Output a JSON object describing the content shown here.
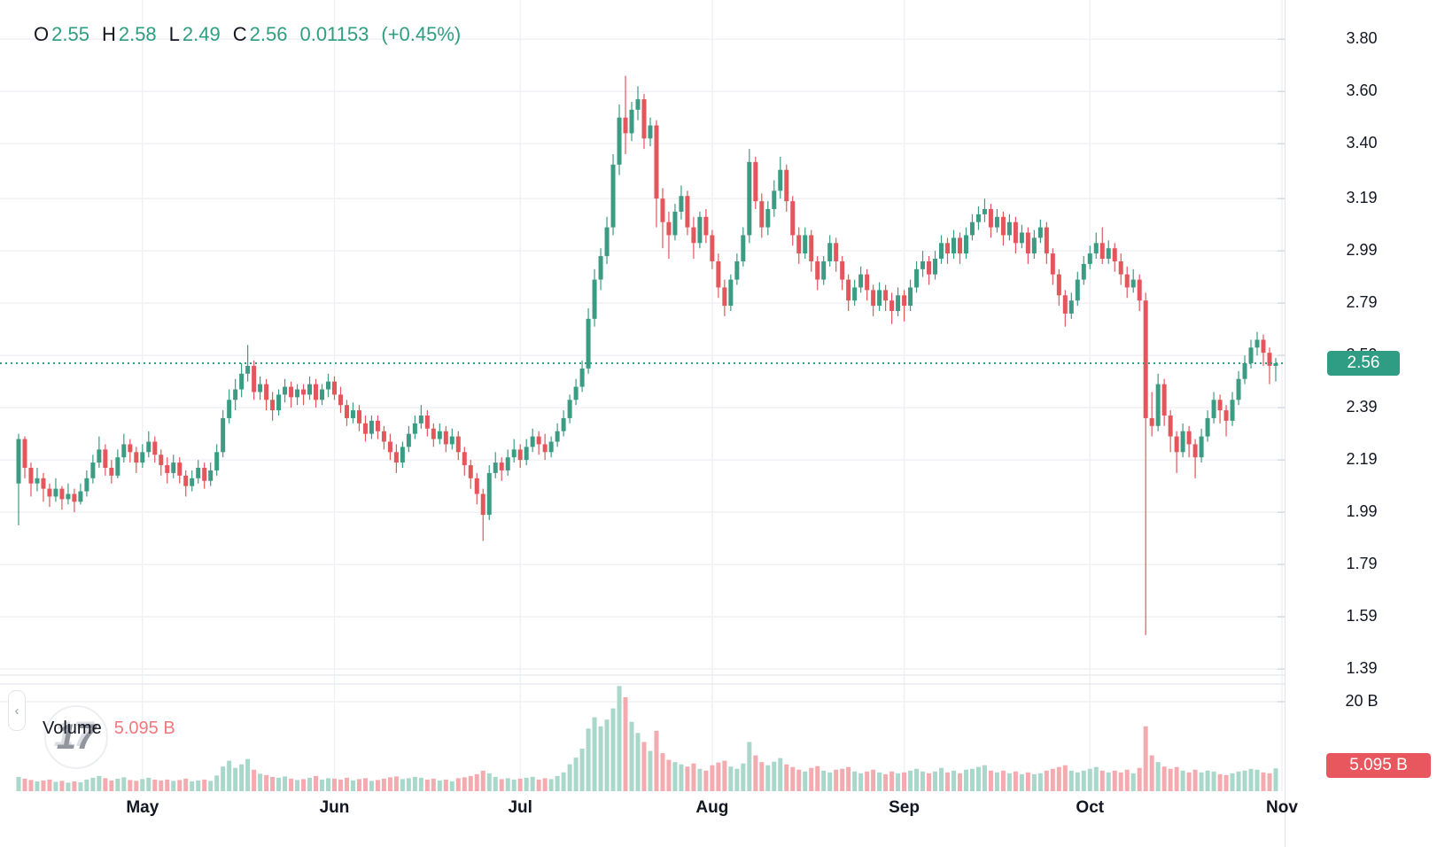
{
  "legend": {
    "items": [
      {
        "label": "O",
        "value": "2.55"
      },
      {
        "label": "H",
        "value": "2.58"
      },
      {
        "label": "L",
        "value": "2.49"
      },
      {
        "label": "C",
        "value": "2.56"
      }
    ],
    "change": "0.01153",
    "change_pct": "(+0.45%)"
  },
  "volume_row": {
    "label": "Volume",
    "value_display": "5.095 B"
  },
  "watermark_text": "17",
  "price_axis": {
    "ticks": [
      "3.80",
      "3.60",
      "3.40",
      "3.19",
      "2.99",
      "2.79",
      "2.59",
      "2.39",
      "2.19",
      "1.99",
      "1.79",
      "1.59",
      "1.39"
    ],
    "current_price_badge": "2.56",
    "volume_max_label": "20 B",
    "volume_badge": "5.095 B"
  },
  "time_axis": {
    "labels": [
      "May",
      "Jun",
      "Jul",
      "Aug",
      "Sep",
      "Oct",
      "Nov"
    ]
  },
  "colors": {
    "candle_up": "#3b9c83",
    "candle_down": "#e2565c",
    "vol_up": "#a9d7c9",
    "vol_down": "#f4abb0",
    "badge_up": "#2f9d83",
    "badge_down": "#e9575e",
    "legend_green": "#2f9d81",
    "vol_value_red": "#f0787e",
    "grid": "#f0f1f4",
    "axis_text": "#131722",
    "dotted_price_line": "#339d84"
  },
  "chart_data": {
    "type": "candlestick",
    "subtype": "price_with_volume_pane",
    "price_line": 2.56,
    "ohlc_current": {
      "open": 2.55,
      "high": 2.58,
      "low": 2.49,
      "close": 2.56,
      "change": 0.01153,
      "change_pct": 0.45
    },
    "volume_current_billions": 5.095,
    "volume_axis_max_billions": 20,
    "price_tick_values": [
      3.8,
      3.6,
      3.4,
      3.19,
      2.99,
      2.79,
      2.59,
      2.39,
      2.19,
      1.99,
      1.79,
      1.59,
      1.39
    ],
    "months": [
      {
        "label": "May",
        "index": 20
      },
      {
        "label": "Jun",
        "index": 51
      },
      {
        "label": "Jul",
        "index": 81
      },
      {
        "label": "Aug",
        "index": 112
      },
      {
        "label": "Sep",
        "index": 143
      },
      {
        "label": "Oct",
        "index": 173
      },
      {
        "label": "Nov",
        "index": 204
      }
    ],
    "candles_format": [
      "open",
      "high",
      "low",
      "close",
      "volume_billions"
    ],
    "candles": [
      [
        2.1,
        2.29,
        1.94,
        2.27,
        3.2
      ],
      [
        2.27,
        2.28,
        2.12,
        2.16,
        2.8
      ],
      [
        2.16,
        2.18,
        2.05,
        2.1,
        2.5
      ],
      [
        2.1,
        2.16,
        2.07,
        2.12,
        2.2
      ],
      [
        2.12,
        2.14,
        2.03,
        2.08,
        2.4
      ],
      [
        2.08,
        2.1,
        2.01,
        2.05,
        2.6
      ],
      [
        2.05,
        2.12,
        2.03,
        2.08,
        2.1
      ],
      [
        2.08,
        2.09,
        2.0,
        2.04,
        2.3
      ],
      [
        2.04,
        2.1,
        2.02,
        2.06,
        1.9
      ],
      [
        2.06,
        2.08,
        1.99,
        2.03,
        2.2
      ],
      [
        2.03,
        2.1,
        2.02,
        2.07,
        2.0
      ],
      [
        2.07,
        2.15,
        2.05,
        2.12,
        2.6
      ],
      [
        2.12,
        2.21,
        2.1,
        2.18,
        3.0
      ],
      [
        2.18,
        2.28,
        2.16,
        2.23,
        3.4
      ],
      [
        2.23,
        2.25,
        2.13,
        2.16,
        2.9
      ],
      [
        2.16,
        2.19,
        2.1,
        2.13,
        2.4
      ],
      [
        2.13,
        2.23,
        2.12,
        2.2,
        2.8
      ],
      [
        2.2,
        2.29,
        2.18,
        2.25,
        3.1
      ],
      [
        2.25,
        2.27,
        2.18,
        2.22,
        2.5
      ],
      [
        2.22,
        2.24,
        2.14,
        2.18,
        2.3
      ],
      [
        2.18,
        2.25,
        2.16,
        2.22,
        2.7
      ],
      [
        2.22,
        2.3,
        2.2,
        2.26,
        3.0
      ],
      [
        2.26,
        2.28,
        2.18,
        2.21,
        2.6
      ],
      [
        2.21,
        2.23,
        2.13,
        2.17,
        2.4
      ],
      [
        2.17,
        2.2,
        2.1,
        2.14,
        2.6
      ],
      [
        2.14,
        2.21,
        2.12,
        2.18,
        2.3
      ],
      [
        2.18,
        2.2,
        2.1,
        2.13,
        2.5
      ],
      [
        2.13,
        2.15,
        2.05,
        2.09,
        2.8
      ],
      [
        2.09,
        2.15,
        2.07,
        2.12,
        2.2
      ],
      [
        2.12,
        2.19,
        2.1,
        2.16,
        2.4
      ],
      [
        2.16,
        2.18,
        2.08,
        2.11,
        2.6
      ],
      [
        2.11,
        2.18,
        2.09,
        2.15,
        2.3
      ],
      [
        2.15,
        2.25,
        2.13,
        2.22,
        3.5
      ],
      [
        2.22,
        2.38,
        2.2,
        2.35,
        5.5
      ],
      [
        2.35,
        2.46,
        2.33,
        2.42,
        6.8
      ],
      [
        2.42,
        2.5,
        2.38,
        2.46,
        5.2
      ],
      [
        2.46,
        2.56,
        2.43,
        2.52,
        6.0
      ],
      [
        2.52,
        2.63,
        2.49,
        2.55,
        7.2
      ],
      [
        2.55,
        2.57,
        2.42,
        2.45,
        4.8
      ],
      [
        2.45,
        2.51,
        2.42,
        2.48,
        3.9
      ],
      [
        2.48,
        2.5,
        2.38,
        2.42,
        3.6
      ],
      [
        2.42,
        2.45,
        2.34,
        2.38,
        3.2
      ],
      [
        2.38,
        2.46,
        2.36,
        2.44,
        3.0
      ],
      [
        2.44,
        2.5,
        2.41,
        2.47,
        3.3
      ],
      [
        2.47,
        2.49,
        2.39,
        2.43,
        2.8
      ],
      [
        2.43,
        2.48,
        2.4,
        2.46,
        2.5
      ],
      [
        2.46,
        2.48,
        2.4,
        2.44,
        2.7
      ],
      [
        2.44,
        2.51,
        2.42,
        2.48,
        3.0
      ],
      [
        2.48,
        2.5,
        2.39,
        2.42,
        3.4
      ],
      [
        2.42,
        2.48,
        2.4,
        2.46,
        2.6
      ],
      [
        2.46,
        2.52,
        2.43,
        2.49,
        2.9
      ],
      [
        2.49,
        2.51,
        2.42,
        2.44,
        2.8
      ],
      [
        2.44,
        2.47,
        2.37,
        2.4,
        2.6
      ],
      [
        2.4,
        2.42,
        2.32,
        2.35,
        3.0
      ],
      [
        2.35,
        2.41,
        2.33,
        2.38,
        2.4
      ],
      [
        2.38,
        2.4,
        2.3,
        2.33,
        2.7
      ],
      [
        2.33,
        2.36,
        2.26,
        2.29,
        2.9
      ],
      [
        2.29,
        2.36,
        2.27,
        2.34,
        2.3
      ],
      [
        2.34,
        2.36,
        2.27,
        2.3,
        2.5
      ],
      [
        2.3,
        2.32,
        2.23,
        2.26,
        2.8
      ],
      [
        2.26,
        2.29,
        2.19,
        2.22,
        3.1
      ],
      [
        2.22,
        2.25,
        2.14,
        2.18,
        3.3
      ],
      [
        2.18,
        2.26,
        2.16,
        2.24,
        2.7
      ],
      [
        2.24,
        2.32,
        2.22,
        2.29,
        2.9
      ],
      [
        2.29,
        2.36,
        2.27,
        2.33,
        3.2
      ],
      [
        2.33,
        2.4,
        2.31,
        2.36,
        3.0
      ],
      [
        2.36,
        2.38,
        2.28,
        2.31,
        2.6
      ],
      [
        2.31,
        2.33,
        2.24,
        2.27,
        2.8
      ],
      [
        2.27,
        2.33,
        2.25,
        2.3,
        2.4
      ],
      [
        2.3,
        2.32,
        2.22,
        2.25,
        2.6
      ],
      [
        2.25,
        2.31,
        2.23,
        2.28,
        2.2
      ],
      [
        2.28,
        2.3,
        2.19,
        2.22,
        2.9
      ],
      [
        2.22,
        2.24,
        2.13,
        2.17,
        3.1
      ],
      [
        2.17,
        2.19,
        2.08,
        2.12,
        3.4
      ],
      [
        2.12,
        2.14,
        2.02,
        2.06,
        3.8
      ],
      [
        2.06,
        2.08,
        1.88,
        1.98,
        4.6
      ],
      [
        1.98,
        2.17,
        1.96,
        2.14,
        4.0
      ],
      [
        2.14,
        2.22,
        2.12,
        2.18,
        3.2
      ],
      [
        2.18,
        2.2,
        2.11,
        2.15,
        2.7
      ],
      [
        2.15,
        2.23,
        2.13,
        2.2,
        2.9
      ],
      [
        2.2,
        2.27,
        2.18,
        2.23,
        2.6
      ],
      [
        2.23,
        2.25,
        2.16,
        2.19,
        2.8
      ],
      [
        2.19,
        2.27,
        2.17,
        2.24,
        3.0
      ],
      [
        2.24,
        2.31,
        2.22,
        2.28,
        3.2
      ],
      [
        2.28,
        2.3,
        2.21,
        2.25,
        2.6
      ],
      [
        2.25,
        2.29,
        2.19,
        2.22,
        2.9
      ],
      [
        2.22,
        2.28,
        2.2,
        2.26,
        2.7
      ],
      [
        2.26,
        2.33,
        2.24,
        2.3,
        3.4
      ],
      [
        2.3,
        2.38,
        2.28,
        2.35,
        4.2
      ],
      [
        2.35,
        2.44,
        2.33,
        2.42,
        6.0
      ],
      [
        2.42,
        2.5,
        2.4,
        2.47,
        7.5
      ],
      [
        2.47,
        2.57,
        2.45,
        2.54,
        9.5
      ],
      [
        2.54,
        2.77,
        2.52,
        2.73,
        14.0
      ],
      [
        2.73,
        2.92,
        2.7,
        2.88,
        16.5
      ],
      [
        2.88,
        3.0,
        2.84,
        2.97,
        14.5
      ],
      [
        2.97,
        3.12,
        2.94,
        3.08,
        16.0
      ],
      [
        3.08,
        3.36,
        3.05,
        3.32,
        18.5
      ],
      [
        3.32,
        3.55,
        3.28,
        3.5,
        23.5
      ],
      [
        3.5,
        3.66,
        3.36,
        3.44,
        21.0
      ],
      [
        3.44,
        3.56,
        3.41,
        3.53,
        15.5
      ],
      [
        3.53,
        3.62,
        3.49,
        3.57,
        13.0
      ],
      [
        3.57,
        3.59,
        3.38,
        3.42,
        11.0
      ],
      [
        3.42,
        3.5,
        3.39,
        3.47,
        9.0
      ],
      [
        3.47,
        3.49,
        3.08,
        3.19,
        13.5
      ],
      [
        3.19,
        3.23,
        3.0,
        3.1,
        8.5
      ],
      [
        3.1,
        3.14,
        2.96,
        3.05,
        7.0
      ],
      [
        3.05,
        3.17,
        3.03,
        3.14,
        6.5
      ],
      [
        3.14,
        3.24,
        3.11,
        3.2,
        6.0
      ],
      [
        3.2,
        3.22,
        3.05,
        3.08,
        5.5
      ],
      [
        3.08,
        3.12,
        2.96,
        3.02,
        6.2
      ],
      [
        3.02,
        3.14,
        3.0,
        3.12,
        5.0
      ],
      [
        3.12,
        3.15,
        3.02,
        3.05,
        4.6
      ],
      [
        3.05,
        3.07,
        2.92,
        2.95,
        5.8
      ],
      [
        2.95,
        2.98,
        2.81,
        2.85,
        6.4
      ],
      [
        2.85,
        2.88,
        2.74,
        2.78,
        6.8
      ],
      [
        2.78,
        2.9,
        2.76,
        2.88,
        5.5
      ],
      [
        2.88,
        2.98,
        2.86,
        2.95,
        5.0
      ],
      [
        2.95,
        3.08,
        2.93,
        3.05,
        6.2
      ],
      [
        3.05,
        3.38,
        3.02,
        3.33,
        11.0
      ],
      [
        3.33,
        3.35,
        3.15,
        3.18,
        8.0
      ],
      [
        3.18,
        3.21,
        3.04,
        3.08,
        6.5
      ],
      [
        3.08,
        3.18,
        3.05,
        3.15,
        5.8
      ],
      [
        3.15,
        3.26,
        3.12,
        3.22,
        6.6
      ],
      [
        3.22,
        3.35,
        3.19,
        3.3,
        7.4
      ],
      [
        3.3,
        3.32,
        3.14,
        3.18,
        6.0
      ],
      [
        3.18,
        3.2,
        3.01,
        3.05,
        5.4
      ],
      [
        3.05,
        3.08,
        2.94,
        2.98,
        4.8
      ],
      [
        2.98,
        3.08,
        2.96,
        3.05,
        4.4
      ],
      [
        3.05,
        3.07,
        2.91,
        2.95,
        5.2
      ],
      [
        2.95,
        2.97,
        2.84,
        2.88,
        5.6
      ],
      [
        2.88,
        2.97,
        2.86,
        2.95,
        4.6
      ],
      [
        2.95,
        3.05,
        2.93,
        3.02,
        4.2
      ],
      [
        3.02,
        3.04,
        2.91,
        2.95,
        4.8
      ],
      [
        2.95,
        2.97,
        2.84,
        2.88,
        5.0
      ],
      [
        2.88,
        2.9,
        2.76,
        2.8,
        5.4
      ],
      [
        2.8,
        2.88,
        2.78,
        2.85,
        4.4
      ],
      [
        2.85,
        2.93,
        2.83,
        2.9,
        4.0
      ],
      [
        2.9,
        2.92,
        2.8,
        2.84,
        4.4
      ],
      [
        2.84,
        2.86,
        2.74,
        2.78,
        4.8
      ],
      [
        2.78,
        2.87,
        2.76,
        2.84,
        4.2
      ],
      [
        2.84,
        2.86,
        2.76,
        2.8,
        3.8
      ],
      [
        2.8,
        2.83,
        2.71,
        2.76,
        4.4
      ],
      [
        2.76,
        2.85,
        2.74,
        2.82,
        4.0
      ],
      [
        2.82,
        2.84,
        2.72,
        2.78,
        4.2
      ],
      [
        2.78,
        2.88,
        2.76,
        2.85,
        4.6
      ],
      [
        2.85,
        2.95,
        2.83,
        2.92,
        5.0
      ],
      [
        2.92,
        2.99,
        2.89,
        2.95,
        4.4
      ],
      [
        2.95,
        2.97,
        2.86,
        2.9,
        4.0
      ],
      [
        2.9,
        2.99,
        2.88,
        2.96,
        4.4
      ],
      [
        2.96,
        3.05,
        2.94,
        3.02,
        5.2
      ],
      [
        3.02,
        3.04,
        2.94,
        2.98,
        4.2
      ],
      [
        2.98,
        3.07,
        2.96,
        3.04,
        4.6
      ],
      [
        3.04,
        3.06,
        2.94,
        2.98,
        4.0
      ],
      [
        2.98,
        3.08,
        2.96,
        3.05,
        4.8
      ],
      [
        3.05,
        3.13,
        3.03,
        3.1,
        5.0
      ],
      [
        3.1,
        3.16,
        3.07,
        3.13,
        5.4
      ],
      [
        3.13,
        3.19,
        3.1,
        3.15,
        5.8
      ],
      [
        3.15,
        3.17,
        3.04,
        3.08,
        4.6
      ],
      [
        3.08,
        3.15,
        3.06,
        3.12,
        4.2
      ],
      [
        3.12,
        3.14,
        3.01,
        3.05,
        4.6
      ],
      [
        3.05,
        3.13,
        3.03,
        3.1,
        4.0
      ],
      [
        3.1,
        3.12,
        2.98,
        3.02,
        4.4
      ],
      [
        3.02,
        3.09,
        3.0,
        3.06,
        3.8
      ],
      [
        3.06,
        3.08,
        2.94,
        2.98,
        4.2
      ],
      [
        2.98,
        3.07,
        2.96,
        3.04,
        3.8
      ],
      [
        3.04,
        3.11,
        3.02,
        3.08,
        4.0
      ],
      [
        3.08,
        3.1,
        2.94,
        2.98,
        4.6
      ],
      [
        2.98,
        3.0,
        2.86,
        2.9,
        5.0
      ],
      [
        2.9,
        2.92,
        2.78,
        2.82,
        5.4
      ],
      [
        2.82,
        2.84,
        2.7,
        2.75,
        5.8
      ],
      [
        2.75,
        2.83,
        2.73,
        2.8,
        4.6
      ],
      [
        2.8,
        2.91,
        2.78,
        2.88,
        4.2
      ],
      [
        2.88,
        2.97,
        2.86,
        2.94,
        4.6
      ],
      [
        2.94,
        3.01,
        2.92,
        2.98,
        5.0
      ],
      [
        2.98,
        3.06,
        2.96,
        3.02,
        5.4
      ],
      [
        3.02,
        3.08,
        2.94,
        2.96,
        4.6
      ],
      [
        2.96,
        3.03,
        2.94,
        3.0,
        4.2
      ],
      [
        3.0,
        3.02,
        2.91,
        2.95,
        4.6
      ],
      [
        2.95,
        2.98,
        2.86,
        2.9,
        4.2
      ],
      [
        2.9,
        2.93,
        2.81,
        2.85,
        4.8
      ],
      [
        2.85,
        2.92,
        2.83,
        2.88,
        4.0
      ],
      [
        2.88,
        2.9,
        2.76,
        2.8,
        5.2
      ],
      [
        2.8,
        2.83,
        1.52,
        2.35,
        14.5
      ],
      [
        2.35,
        2.45,
        2.28,
        2.32,
        8.0
      ],
      [
        2.32,
        2.52,
        2.3,
        2.48,
        6.5
      ],
      [
        2.48,
        2.5,
        2.32,
        2.36,
        5.5
      ],
      [
        2.36,
        2.38,
        2.22,
        2.28,
        5.0
      ],
      [
        2.28,
        2.3,
        2.14,
        2.22,
        5.4
      ],
      [
        2.22,
        2.33,
        2.2,
        2.3,
        4.6
      ],
      [
        2.3,
        2.32,
        2.2,
        2.25,
        4.2
      ],
      [
        2.25,
        2.27,
        2.12,
        2.2,
        4.8
      ],
      [
        2.2,
        2.31,
        2.18,
        2.28,
        4.2
      ],
      [
        2.28,
        2.38,
        2.26,
        2.35,
        4.6
      ],
      [
        2.35,
        2.45,
        2.33,
        2.42,
        4.4
      ],
      [
        2.42,
        2.44,
        2.33,
        2.38,
        3.8
      ],
      [
        2.38,
        2.4,
        2.28,
        2.34,
        3.6
      ],
      [
        2.34,
        2.45,
        2.32,
        2.42,
        4.0
      ],
      [
        2.42,
        2.53,
        2.4,
        2.5,
        4.4
      ],
      [
        2.5,
        2.59,
        2.48,
        2.56,
        4.6
      ],
      [
        2.56,
        2.65,
        2.54,
        2.62,
        5.0
      ],
      [
        2.62,
        2.68,
        2.59,
        2.65,
        4.8
      ],
      [
        2.65,
        2.67,
        2.55,
        2.6,
        4.2
      ],
      [
        2.6,
        2.62,
        2.48,
        2.55,
        4.0
      ],
      [
        2.55,
        2.58,
        2.49,
        2.56,
        5.095
      ]
    ]
  }
}
